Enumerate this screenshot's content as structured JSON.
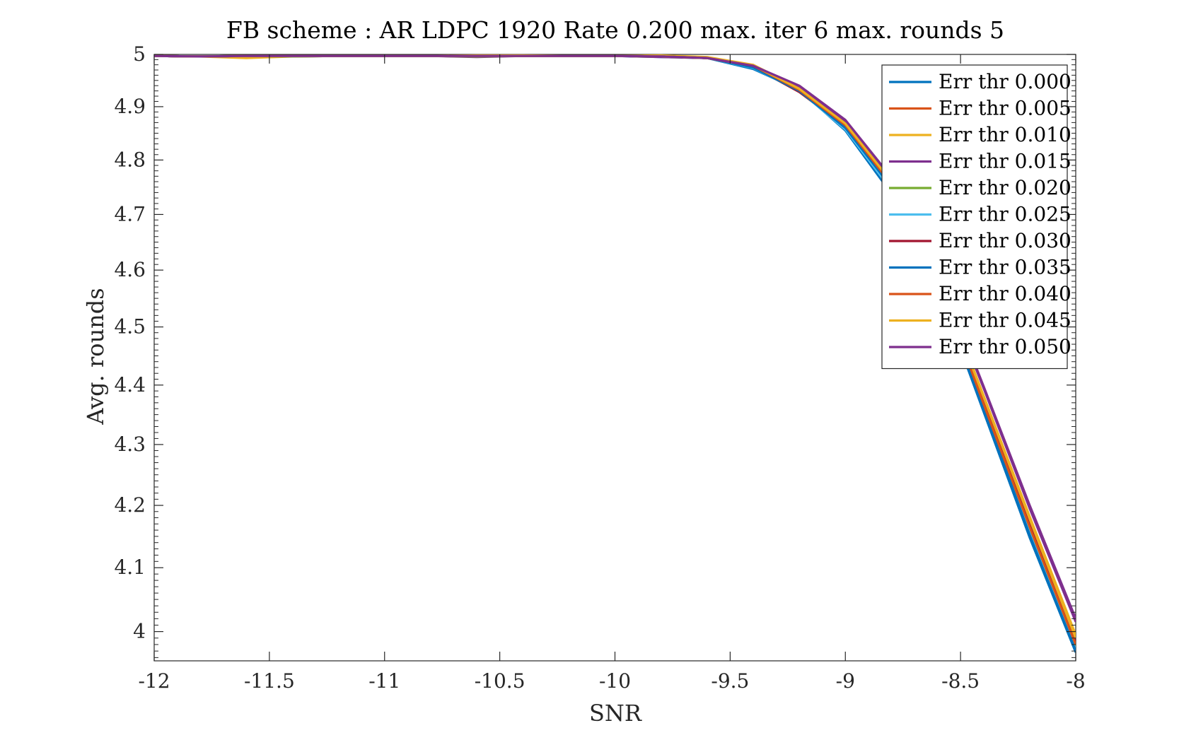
{
  "chart_data": {
    "type": "line",
    "title": "FB scheme : AR LDPC 1920 Rate 0.200 max. iter 6 max. rounds 5",
    "xlabel": "SNR",
    "ylabel": "Avg. rounds",
    "xlim": [
      -12,
      -8
    ],
    "ylim": [
      3.955,
      5.0
    ],
    "y_scale": "log",
    "x_ticks": [
      -12,
      -11.5,
      -11,
      -10.5,
      -10,
      -9.5,
      -9,
      -8.5,
      -8
    ],
    "x_tick_labels": [
      "-12",
      "-11.5",
      "-11",
      "-10.5",
      "-10",
      "-9.5",
      "-9",
      "-8.5",
      "-8"
    ],
    "y_ticks": [
      4.0,
      4.1,
      4.2,
      4.3,
      4.4,
      4.5,
      4.6,
      4.7,
      4.8,
      4.9,
      5.0
    ],
    "y_tick_labels": [
      "4",
      "4.1",
      "4.2",
      "4.3",
      "4.4",
      "4.5",
      "4.6",
      "4.7",
      "4.8",
      "4.9",
      "5"
    ],
    "grid": false,
    "legend_position": "top-right",
    "x": [
      -12,
      -11.8,
      -11.6,
      -11.4,
      -11.2,
      -11,
      -10.8,
      -10.6,
      -10.4,
      -10.2,
      -10,
      -9.8,
      -9.6,
      -9.4,
      -9.2,
      -9,
      -8.8,
      -8.6,
      -8.4,
      -8.2,
      -8
    ],
    "series": [
      {
        "name": "Err thr 0.000",
        "color": "#0072BD",
        "values": [
          4.997,
          4.996,
          4.997,
          4.996,
          4.997,
          4.997,
          4.997,
          4.996,
          4.997,
          4.997,
          4.997,
          4.995,
          4.993,
          4.972,
          4.932,
          4.855,
          4.738,
          4.572,
          4.355,
          4.148,
          3.968
        ]
      },
      {
        "name": "Err thr 0.005",
        "color": "#D95319",
        "values": [
          4.997,
          4.996,
          4.997,
          4.997,
          4.997,
          4.997,
          4.997,
          4.997,
          4.997,
          4.997,
          4.997,
          4.996,
          4.993,
          4.976,
          4.928,
          4.862,
          4.75,
          4.58,
          4.365,
          4.16,
          3.975
        ]
      },
      {
        "name": "Err thr 0.010",
        "color": "#EDB120",
        "values": [
          4.997,
          4.996,
          4.993,
          4.996,
          4.997,
          4.997,
          4.997,
          4.998,
          4.998,
          4.997,
          4.997,
          4.998,
          4.995,
          4.98,
          4.935,
          4.865,
          4.76,
          4.59,
          4.382,
          4.182,
          3.995
        ]
      },
      {
        "name": "Err thr 0.015",
        "color": "#7E2F8E",
        "values": [
          4.997,
          4.996,
          4.997,
          4.997,
          4.997,
          4.997,
          4.997,
          4.995,
          4.997,
          4.997,
          4.997,
          4.995,
          4.993,
          4.978,
          4.938,
          4.873,
          4.765,
          4.598,
          4.395,
          4.195,
          4.015
        ]
      },
      {
        "name": "Err thr 0.020",
        "color": "#77AC30",
        "values": [
          4.997,
          4.996,
          4.997,
          4.996,
          4.997,
          4.997,
          4.997,
          4.996,
          4.997,
          4.997,
          4.997,
          4.996,
          4.993,
          4.975,
          4.932,
          4.86,
          4.752,
          4.585,
          4.372,
          4.165,
          3.978
        ]
      },
      {
        "name": "Err thr 0.025",
        "color": "#4DBEEE",
        "values": [
          4.997,
          4.996,
          4.997,
          4.997,
          4.997,
          4.997,
          4.997,
          4.997,
          4.997,
          4.997,
          4.997,
          4.996,
          4.993,
          4.974,
          4.93,
          4.857,
          4.745,
          4.578,
          4.362,
          4.155,
          3.972
        ]
      },
      {
        "name": "Err thr 0.030",
        "color": "#A2142F",
        "values": [
          4.997,
          4.996,
          4.997,
          4.997,
          4.997,
          4.997,
          4.997,
          4.997,
          4.997,
          4.997,
          4.997,
          4.996,
          4.993,
          4.977,
          4.928,
          4.865,
          4.758,
          4.588,
          4.375,
          4.17,
          3.985
        ]
      },
      {
        "name": "Err thr 0.035",
        "color": "#0072BD",
        "values": [
          4.997,
          4.996,
          4.997,
          4.997,
          4.997,
          4.997,
          4.997,
          4.997,
          4.997,
          4.997,
          4.997,
          4.996,
          4.993,
          4.975,
          4.93,
          4.86,
          4.75,
          4.58,
          4.36,
          4.152,
          3.97
        ]
      },
      {
        "name": "Err thr 0.040",
        "color": "#D95319",
        "values": [
          4.997,
          4.996,
          4.997,
          4.997,
          4.997,
          4.997,
          4.997,
          4.997,
          4.997,
          4.997,
          4.997,
          4.996,
          4.993,
          4.978,
          4.932,
          4.865,
          4.755,
          4.585,
          4.368,
          4.165,
          3.98
        ]
      },
      {
        "name": "Err thr 0.045",
        "color": "#EDB120",
        "values": [
          4.997,
          4.996,
          4.997,
          4.997,
          4.997,
          4.997,
          4.997,
          4.997,
          4.997,
          4.997,
          4.997,
          4.996,
          4.993,
          4.979,
          4.934,
          4.868,
          4.76,
          4.59,
          4.38,
          4.178,
          3.99
        ]
      },
      {
        "name": "Err thr 0.050",
        "color": "#7E2F8E",
        "values": [
          4.997,
          4.996,
          4.997,
          4.997,
          4.997,
          4.997,
          4.997,
          4.997,
          4.997,
          4.997,
          4.997,
          4.996,
          4.993,
          4.978,
          4.94,
          4.875,
          4.768,
          4.602,
          4.398,
          4.2,
          4.02
        ]
      }
    ]
  }
}
